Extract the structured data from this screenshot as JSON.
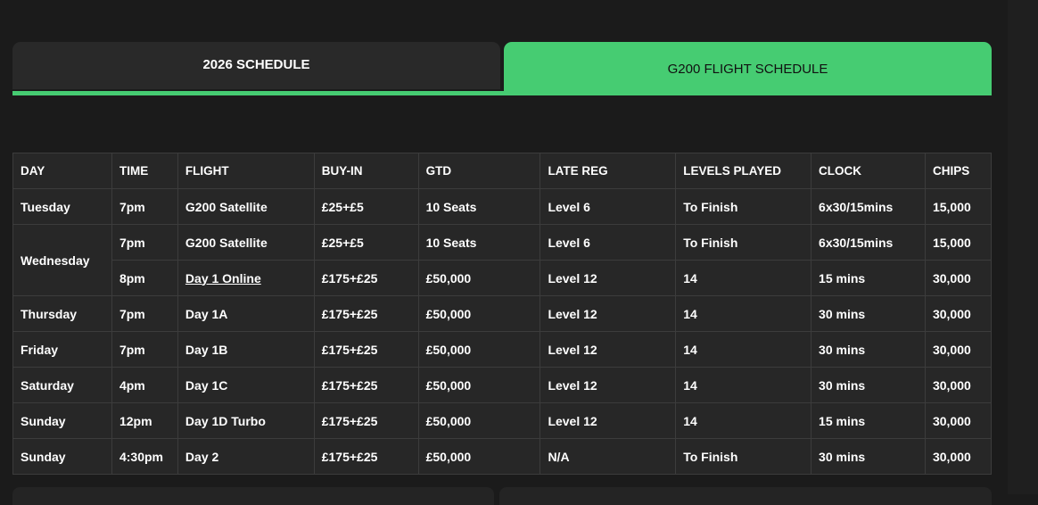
{
  "tabs": [
    {
      "label": "2026 SCHEDULE",
      "active": false
    },
    {
      "label": "G200 FLIGHT SCHEDULE",
      "active": true
    }
  ],
  "accent_color": "#46cc72",
  "table": {
    "headers": [
      "DAY",
      "TIME",
      "FLIGHT",
      "BUY-IN",
      "GTD",
      "LATE REG",
      "LEVELS PLAYED",
      "CLOCK",
      "CHIPS"
    ],
    "rows": [
      {
        "day": "Tuesday",
        "time": "7pm",
        "flight": "G200 Satellite",
        "buyin": "£25+£5",
        "gtd": "10 Seats",
        "latereg": "Level 6",
        "levels": "To Finish",
        "clock": "6x30/15mins",
        "chips": "15,000"
      },
      {
        "day": "Wednesday",
        "time": "7pm",
        "flight": "G200 Satellite",
        "buyin": "£25+£5",
        "gtd": "10 Seats",
        "latereg": "Level 6",
        "levels": "To Finish",
        "clock": "6x30/15mins",
        "chips": "15,000"
      },
      {
        "day": "",
        "time": "8pm",
        "flight": "Day 1 Online",
        "flight_link": true,
        "buyin": "£175+£25",
        "gtd": "£50,000",
        "latereg": "Level 12",
        "levels": "14",
        "clock": "15 mins",
        "chips": "30,000"
      },
      {
        "day": "Thursday",
        "time": "7pm",
        "flight": "Day 1A",
        "buyin": "£175+£25",
        "gtd": "£50,000",
        "latereg": "Level 12",
        "levels": "14",
        "clock": "30 mins",
        "chips": "30,000"
      },
      {
        "day": "Friday",
        "time": "7pm",
        "flight": "Day 1B",
        "buyin": "£175+£25",
        "gtd": "£50,000",
        "latereg": "Level 12",
        "levels": "14",
        "clock": "30 mins",
        "chips": "30,000"
      },
      {
        "day": "Saturday",
        "time": "4pm",
        "flight": "Day 1C",
        "buyin": "£175+£25",
        "gtd": "£50,000",
        "latereg": "Level 12",
        "levels": "14",
        "clock": "30 mins",
        "chips": "30,000"
      },
      {
        "day": "Sunday",
        "time": "12pm",
        "flight": "Day 1D Turbo",
        "buyin": "£175+£25",
        "gtd": "£50,000",
        "latereg": "Level 12",
        "levels": "14",
        "clock": "15 mins",
        "chips": "30,000"
      },
      {
        "day": "Sunday",
        "time": "4:30pm",
        "flight": "Day 2",
        "buyin": "£175+£25",
        "gtd": "£50,000",
        "latereg": "N/A",
        "levels": "To Finish",
        "clock": "30 mins",
        "chips": "30,000"
      }
    ]
  }
}
